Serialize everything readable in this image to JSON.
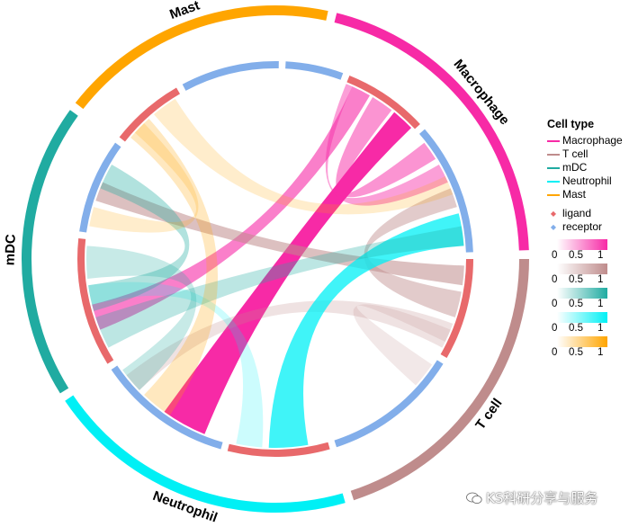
{
  "chart_data": {
    "type": "chord",
    "legend_title": "Cell type",
    "cell_types": [
      {
        "name": "Macrophage",
        "color": "#f72aa6",
        "start_deg": 14,
        "end_deg": 88
      },
      {
        "name": "T cell",
        "color": "#bf8c8c",
        "start_deg": 90,
        "end_deg": 162
      },
      {
        "name": "Neutrophil",
        "color": "#00f0f5",
        "start_deg": 164,
        "end_deg": 236
      },
      {
        "name": "mDC",
        "color": "#20aba1",
        "start_deg": 238,
        "end_deg": 306
      },
      {
        "name": "Mast",
        "color": "#ffa500",
        "start_deg": 308,
        "end_deg": 12
      }
    ],
    "legend_cell_types": [
      "Macrophage",
      "T cell",
      "mDC",
      "Neutrophil",
      "Mast"
    ],
    "role_legend": [
      {
        "name": "ligand",
        "color": "#e8696b"
      },
      {
        "name": "receptor",
        "color": "#82aeea"
      }
    ],
    "role_segments": [
      {
        "role": "receptor",
        "start_deg": 3,
        "end_deg": 20
      },
      {
        "role": "ligand",
        "start_deg": 22,
        "end_deg": 47
      },
      {
        "role": "receptor",
        "start_deg": 49,
        "end_deg": 88
      },
      {
        "role": "ligand",
        "start_deg": 90,
        "end_deg": 120
      },
      {
        "role": "receptor",
        "start_deg": 122,
        "end_deg": 162
      },
      {
        "role": "ligand",
        "start_deg": 164,
        "end_deg": 194
      },
      {
        "role": "receptor",
        "start_deg": 196,
        "end_deg": 236
      },
      {
        "role": "ligand",
        "start_deg": 238,
        "end_deg": 276
      },
      {
        "role": "receptor",
        "start_deg": 278,
        "end_deg": 306
      },
      {
        "role": "ligand",
        "start_deg": 308,
        "end_deg": 330
      },
      {
        "role": "receptor",
        "start_deg": 332,
        "end_deg": 1
      }
    ],
    "links": [
      {
        "source": "Macrophage",
        "from": [
          24,
          30
        ],
        "to": [
          248,
          256
        ],
        "alpha": 0.6
      },
      {
        "source": "Macrophage",
        "from": [
          31,
          38
        ],
        "to": [
          52,
          58
        ],
        "alpha": 0.5
      },
      {
        "source": "Macrophage",
        "from": [
          39,
          46
        ],
        "to": [
          202,
          216
        ],
        "alpha": 1.0
      },
      {
        "source": "Macrophage",
        "from": [
          22,
          24
        ],
        "to": [
          60,
          66
        ],
        "alpha": 0.45
      },
      {
        "source": "T cell",
        "from": [
          92,
          98
        ],
        "to": [
          288,
          294
        ],
        "alpha": 0.55
      },
      {
        "source": "T cell",
        "from": [
          100,
          108
        ],
        "to": [
          68,
          74
        ],
        "alpha": 0.45
      },
      {
        "source": "T cell",
        "from": [
          110,
          118
        ],
        "to": [
          226,
          232
        ],
        "alpha": 0.25
      },
      {
        "source": "T cell",
        "from": [
          112,
          116
        ],
        "to": [
          124,
          132
        ],
        "alpha": 0.2
      },
      {
        "source": "Neutrophil",
        "from": [
          170,
          182
        ],
        "to": [
          76,
          86
        ],
        "alpha": 0.75
      },
      {
        "source": "Neutrophil",
        "from": [
          184,
          192
        ],
        "to": [
          256,
          262
        ],
        "alpha": 0.2
      },
      {
        "source": "mDC",
        "from": [
          242,
          252
        ],
        "to": [
          80,
          86
        ],
        "alpha": 0.3
      },
      {
        "source": "mDC",
        "from": [
          254,
          262
        ],
        "to": [
          292,
          300
        ],
        "alpha": 0.35
      },
      {
        "source": "mDC",
        "from": [
          264,
          274
        ],
        "to": [
          226,
          234
        ],
        "alpha": 0.25
      },
      {
        "source": "Mast",
        "from": [
          310,
          318
        ],
        "to": [
          214,
          224
        ],
        "alpha": 0.25
      },
      {
        "source": "Mast",
        "from": [
          320,
          328
        ],
        "to": [
          64,
          70
        ],
        "alpha": 0.2
      },
      {
        "source": "Mast",
        "from": [
          312,
          316
        ],
        "to": [
          280,
          286
        ],
        "alpha": 0.2
      }
    ],
    "colorbars": [
      {
        "color": "#f72aa6",
        "ticks": [
          "0",
          "0.5",
          "1"
        ]
      },
      {
        "color": "#bf8c8c",
        "ticks": [
          "0",
          "0.5",
          "1"
        ]
      },
      {
        "color": "#20aba1",
        "ticks": [
          "0",
          "0.5",
          "1"
        ]
      },
      {
        "color": "#00f0f5",
        "ticks": [
          "0",
          "0.5",
          "1"
        ]
      },
      {
        "color": "#ffa500",
        "ticks": [
          "0",
          "0.5",
          "1"
        ]
      }
    ]
  },
  "watermark": "KS科研分享与服务"
}
